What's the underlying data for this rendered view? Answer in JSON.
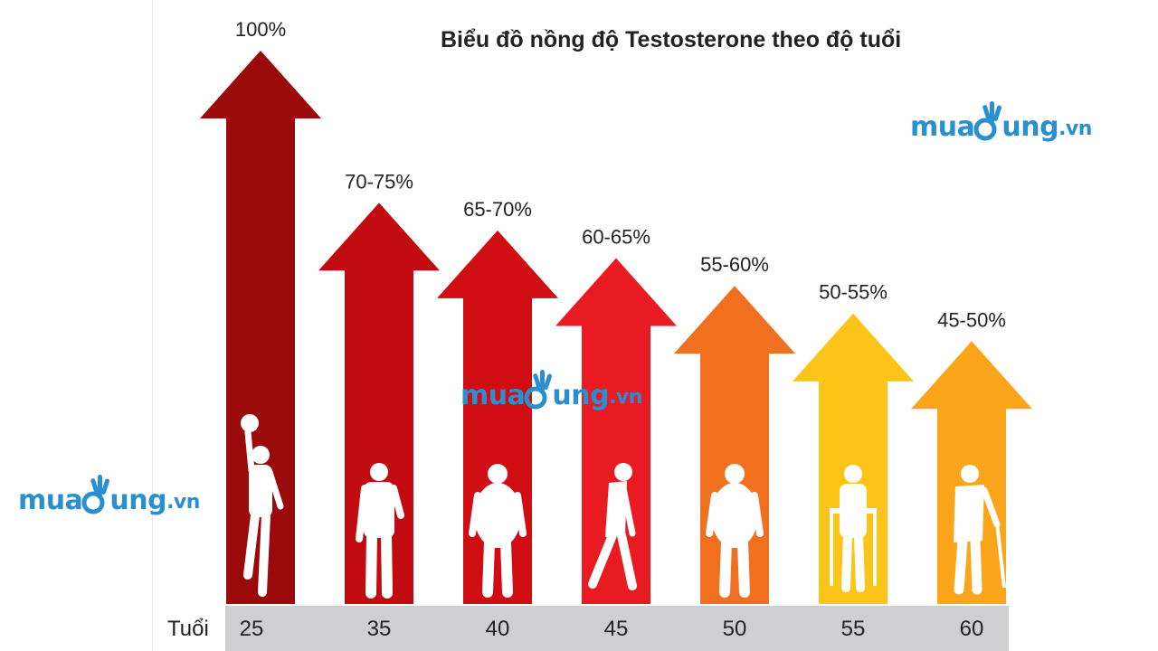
{
  "chart_data": {
    "type": "bar",
    "title": "Biểu đồ nồng độ Testosterone theo độ tuổi",
    "xlabel": "Tuổi",
    "ylabel": "",
    "categories": [
      "25",
      "35",
      "40",
      "45",
      "50",
      "55",
      "60"
    ],
    "value_labels": [
      "100%",
      "70-75%",
      "65-70%",
      "60-65%",
      "55-60%",
      "50-55%",
      "45-50%"
    ],
    "values": [
      100,
      72.5,
      67.5,
      62.5,
      57.5,
      52.5,
      47.5
    ],
    "ranges": [
      [
        100,
        100
      ],
      [
        70,
        75
      ],
      [
        65,
        70
      ],
      [
        60,
        65
      ],
      [
        55,
        60
      ],
      [
        50,
        55
      ],
      [
        45,
        50
      ]
    ],
    "colors": [
      "#9b0a0a",
      "#c10b10",
      "#d10d14",
      "#ea1a22",
      "#f07020",
      "#fcc419",
      "#faa51a"
    ],
    "figures": [
      "young-man-with-ball-silhouette",
      "standing-man-silhouette",
      "heavy-man-silhouette",
      "bent-man-silhouette",
      "heavy-man-silhouette",
      "elderly-man-with-walker-silhouette",
      "elderly-man-with-cane-silhouette"
    ],
    "bar_style": "arrow",
    "grid": false,
    "legend": "none"
  },
  "watermarks": [
    {
      "pre": "mua",
      "post": "ung",
      "suffix": ".vn"
    },
    {
      "pre": "mua",
      "post": "ung",
      "suffix": ".vn"
    },
    {
      "pre": "mua",
      "post": "ung",
      "suffix": ".vn"
    }
  ],
  "colors": {
    "age_band": "#cfcfd1",
    "text": "#222222",
    "watermark": "#2a8fd0"
  }
}
